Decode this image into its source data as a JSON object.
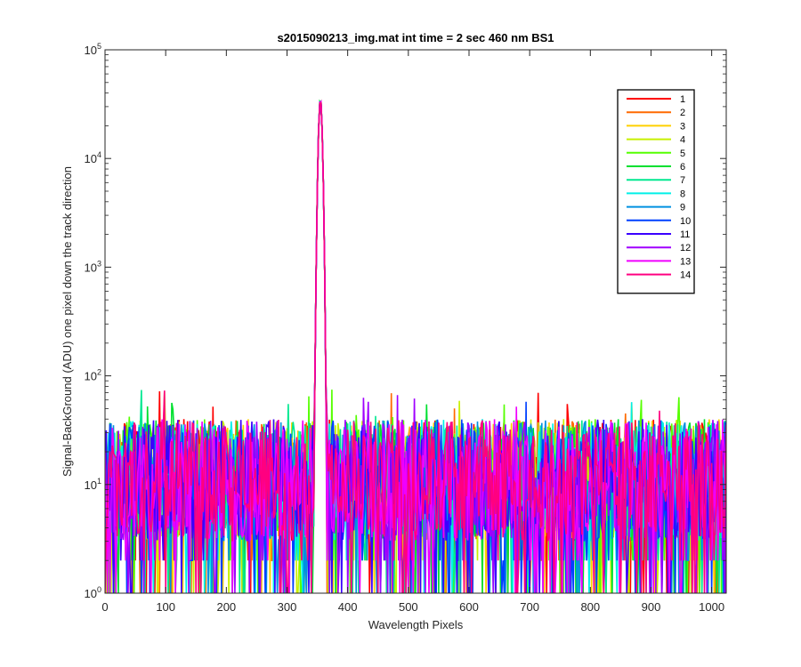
{
  "chart_data": {
    "type": "line",
    "title": "s2015090213_img.mat int time = 2 sec  460 nm BS1",
    "xlabel": "Wavelength Pixels",
    "ylabel": "Signal-BackGround (ADU) one pixel down the track direction",
    "xlim": [
      0,
      1024
    ],
    "ylim": [
      1,
      100000
    ],
    "yscale": "log",
    "grid": false,
    "legend_position": "top-right",
    "x_ticks": [
      "0",
      "100",
      "200",
      "300",
      "400",
      "500",
      "600",
      "700",
      "800",
      "900",
      "1000"
    ],
    "y_ticks": [
      {
        "base": "10",
        "exp": "0"
      },
      {
        "base": "10",
        "exp": "1"
      },
      {
        "base": "10",
        "exp": "2"
      },
      {
        "base": "10",
        "exp": "3"
      },
      {
        "base": "10",
        "exp": "4"
      },
      {
        "base": "10",
        "exp": "5"
      }
    ],
    "peak": {
      "x": 355,
      "y": 35000
    },
    "noise": {
      "typical_range": [
        2,
        40
      ],
      "occasional_max": 75
    },
    "series": [
      {
        "name": "1",
        "color": "#ff0000"
      },
      {
        "name": "2",
        "color": "#ff6a00"
      },
      {
        "name": "3",
        "color": "#ffd000"
      },
      {
        "name": "4",
        "color": "#c8f000"
      },
      {
        "name": "5",
        "color": "#55ff00"
      },
      {
        "name": "6",
        "color": "#00e030"
      },
      {
        "name": "7",
        "color": "#00e890"
      },
      {
        "name": "8",
        "color": "#00f0e8"
      },
      {
        "name": "9",
        "color": "#0090e0"
      },
      {
        "name": "10",
        "color": "#0040ff"
      },
      {
        "name": "11",
        "color": "#3a00ff"
      },
      {
        "name": "12",
        "color": "#a000ff"
      },
      {
        "name": "13",
        "color": "#f000ff"
      },
      {
        "name": "14",
        "color": "#ff0080"
      }
    ]
  }
}
